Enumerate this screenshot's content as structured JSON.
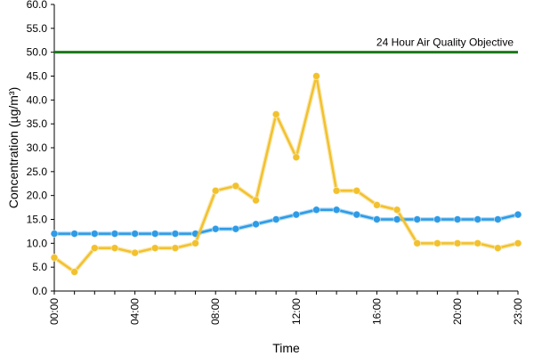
{
  "chart_data": {
    "type": "line",
    "title": "",
    "xlabel": "Time",
    "ylabel": "Concentration (µg/m³)",
    "ylim": [
      0,
      60
    ],
    "y_ticks": [
      "0.0",
      "5.0",
      "10.0",
      "15.0",
      "20.0",
      "25.0",
      "30.0",
      "35.0",
      "40.0",
      "45.0",
      "50.0",
      "55.0",
      "60.0"
    ],
    "x_tick_labels": [
      "00:00",
      "04:00",
      "08:00",
      "12:00",
      "16:00",
      "20:00",
      "23:00"
    ],
    "x_tick_hours": [
      0,
      4,
      8,
      12,
      16,
      20,
      23
    ],
    "x_hours": [
      0,
      1,
      2,
      3,
      4,
      5,
      6,
      7,
      8,
      9,
      10,
      11,
      12,
      13,
      14,
      15,
      16,
      17,
      18,
      19,
      20,
      21,
      22,
      23
    ],
    "grid": false,
    "series": [
      {
        "color": "#2e9be6",
        "values": [
          12,
          12,
          12,
          12,
          12,
          12,
          12,
          12,
          13,
          13,
          14,
          15,
          16,
          17,
          17,
          16,
          15,
          15,
          15,
          15,
          15,
          15,
          15,
          16
        ]
      },
      {
        "color": "#f2c12e",
        "values": [
          7,
          4,
          9,
          9,
          8,
          9,
          9,
          10,
          21,
          22,
          19,
          37,
          28,
          45,
          21,
          21,
          18,
          17,
          10,
          10,
          10,
          10,
          9,
          10
        ]
      }
    ],
    "reference_line": {
      "label": "24 Hour Air Quality Objective",
      "value": 50,
      "color": "#1a7a1a"
    }
  }
}
